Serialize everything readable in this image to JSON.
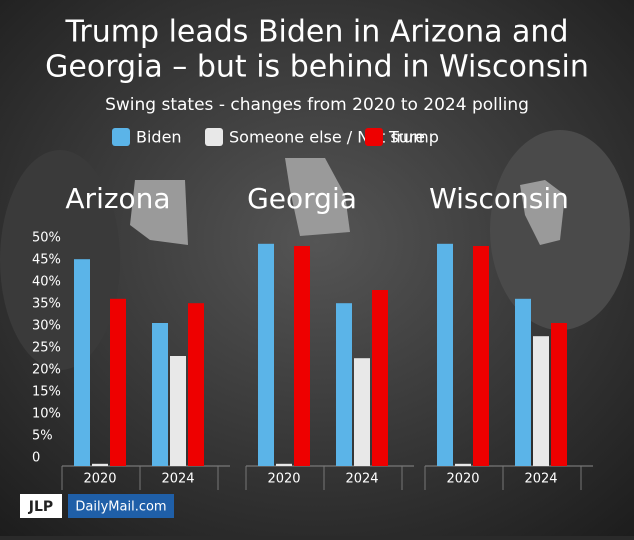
{
  "header": {
    "title": [
      "Trump leads Biden in Arizona and",
      "Georgia – but is behind in Wisconsin"
    ],
    "subtitle": "Swing states - changes from 2020 to 2024 polling"
  },
  "chart_data": [
    {
      "type": "bar",
      "title": "Arizona",
      "categories": [
        "2020",
        "2024"
      ],
      "series": [
        {
          "name": "Biden",
          "color": "#5bb4e8",
          "values": [
            47,
            32.5
          ]
        },
        {
          "name": "Someone else / Not sure",
          "color": "#e8e8e8",
          "values": [
            0.5,
            25
          ]
        },
        {
          "name": "Trump",
          "color": "#ee0000",
          "values": [
            38,
            37
          ]
        }
      ],
      "ylim": [
        0,
        50
      ],
      "yticks": [
        0,
        {
          "value": 5,
          "label": "5%"
        },
        {
          "value": 10,
          "label": "10%"
        },
        {
          "value": 15,
          "label": "15%"
        },
        {
          "value": 20,
          "label": "20%"
        },
        {
          "value": 25,
          "label": "25%"
        },
        {
          "value": 30,
          "label": "30%"
        },
        {
          "value": 35,
          "label": "35%"
        },
        {
          "value": 40,
          "label": "40%"
        },
        {
          "value": 45,
          "label": "45%"
        },
        {
          "value": 50,
          "label": "50%"
        }
      ]
    },
    {
      "type": "bar",
      "title": "Georgia",
      "categories": [
        "2020",
        "2024"
      ],
      "series": [
        {
          "name": "Biden",
          "color": "#5bb4e8",
          "values": [
            50.5,
            37
          ]
        },
        {
          "name": "Someone else / Not sure",
          "color": "#e8e8e8",
          "values": [
            0.5,
            24.5
          ]
        },
        {
          "name": "Trump",
          "color": "#ee0000",
          "values": [
            50,
            40
          ]
        }
      ],
      "ylim": [
        0,
        50
      ]
    },
    {
      "type": "bar",
      "title": "Wisconsin",
      "categories": [
        "2020",
        "2024"
      ],
      "series": [
        {
          "name": "Biden",
          "color": "#5bb4e8",
          "values": [
            50.5,
            38
          ]
        },
        {
          "name": "Someone else / Not sure",
          "color": "#e8e8e8",
          "values": [
            0.5,
            29.5
          ]
        },
        {
          "name": "Trump",
          "color": "#ee0000",
          "values": [
            50,
            32.5
          ]
        }
      ],
      "ylim": [
        0,
        50
      ]
    }
  ],
  "footer": {
    "logo": "JLP",
    "brand": "DailyMail.com"
  }
}
